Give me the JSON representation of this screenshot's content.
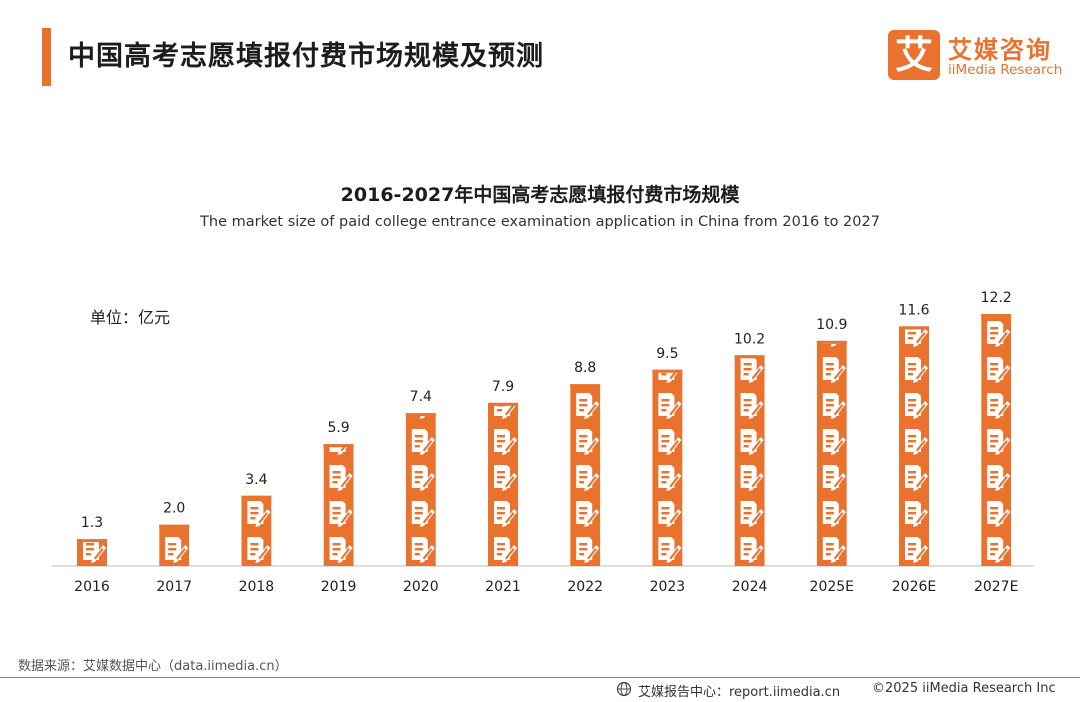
{
  "header": {
    "title": "中国高考志愿填报付费市场规模及预测"
  },
  "logo": {
    "mark": "艾",
    "name_cn": "艾媒咨询",
    "name_en": "iiMedia Research"
  },
  "unit_label": "单位：亿元",
  "chart_data": {
    "type": "bar",
    "title": "2016-2027年中国高考志愿填报付费市场规模",
    "subtitle": "The market size of paid college entrance examination application in China from 2016 to 2027",
    "categories": [
      "2016",
      "2017",
      "2018",
      "2019",
      "2020",
      "2021",
      "2022",
      "2023",
      "2024",
      "2025E",
      "2026E",
      "2027E"
    ],
    "values": [
      1.3,
      2.0,
      3.4,
      5.9,
      7.4,
      7.9,
      8.8,
      9.5,
      10.2,
      10.9,
      11.6,
      12.2
    ],
    "value_labels": [
      "1.3",
      "2.0",
      "3.4",
      "5.9",
      "7.4",
      "7.9",
      "8.8",
      "9.5",
      "10.2",
      "10.9",
      "11.6",
      "12.2"
    ],
    "ylim": [
      0,
      12.2
    ],
    "bar_color": "#e8722e",
    "grid": false,
    "mark_style": "stacked-pictogram-icons"
  },
  "footer": {
    "source": "数据来源：艾媒数据中心（data.iimedia.cn）",
    "report": "艾媒报告中心：report.iimedia.cn",
    "copyright": "©2025  iiMedia Research  Inc"
  }
}
